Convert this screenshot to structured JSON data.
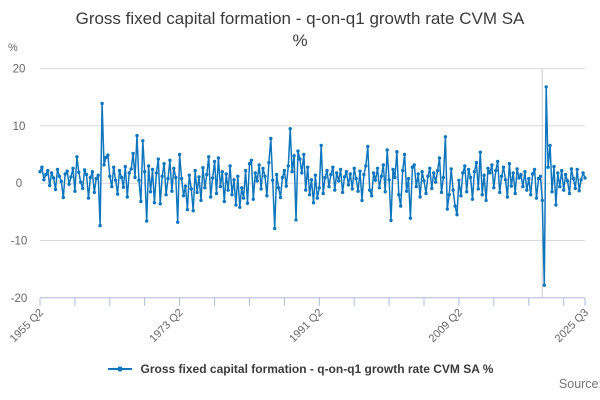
{
  "title": {
    "line1": "Gross fixed capital formation - q-on-q1 growth rate CVM SA",
    "line2": "%"
  },
  "y_axis_unit": "%",
  "legend": {
    "label": "Gross fixed capital formation - q-on-q1 growth rate CVM SA %"
  },
  "source": {
    "label": "Source:"
  },
  "colors": {
    "line": "#0f76bc",
    "grid": "#d9d9d9",
    "axis": "#aebcd4",
    "tick_text": "#666666",
    "title_text": "#3b3b3b",
    "event_line": "#cccccc"
  },
  "chart_data": {
    "type": "line",
    "title": "Gross fixed capital formation - q-on-q1 growth rate CVM SA %",
    "xlabel": "",
    "ylabel": "%",
    "ylim": [
      -20,
      20
    ],
    "grid": "horizontal",
    "legend_position": "bottom",
    "y_axis": {
      "ticks": [
        20,
        10,
        0,
        -10,
        -20
      ]
    },
    "x_axis": {
      "start": "1955 Q2",
      "end": "2025 Q3",
      "frequency": "quarterly",
      "minor_tick_every": 18,
      "labels": [
        {
          "index": 0,
          "label": "1955 Q2"
        },
        {
          "index": 72,
          "label": "1973 Q2"
        },
        {
          "index": 144,
          "label": "1991 Q2"
        },
        {
          "index": 216,
          "label": "2009 Q2"
        },
        {
          "index": 281,
          "label": "2025 Q3"
        }
      ]
    },
    "event_line_index": 259,
    "series": [
      {
        "name": "Gross fixed capital formation - q-on-q1 growth rate CVM SA %",
        "values": [
          2.0,
          2.8,
          0.6,
          1.5,
          2.2,
          -0.4,
          1.8,
          0.9,
          -1.1,
          2.4,
          1.2,
          0.3,
          -2.5,
          1.6,
          2.1,
          -0.2,
          1.1,
          2.6,
          -1.4,
          4.6,
          1.9,
          0.2,
          -0.9,
          2.3,
          1.5,
          -2.6,
          1.0,
          2.0,
          -1.6,
          0.8,
          1.4,
          -7.4,
          13.9,
          3.2,
          4.5,
          4.9,
          1.2,
          -0.6,
          2.8,
          0.5,
          -1.9,
          2.2,
          1.0,
          -0.7,
          2.9,
          -2.4,
          1.8,
          2.5,
          5.2,
          1.0,
          8.3,
          0.5,
          -3.2,
          7.4,
          2.0,
          -6.6,
          3.0,
          -1.5,
          2.4,
          -3.4,
          1.8,
          4.2,
          -3.6,
          1.2,
          3.4,
          -2.0,
          0.8,
          4.0,
          -1.4,
          2.6,
          1.0,
          -6.8,
          5.0,
          0.8,
          -2.2,
          -0.5,
          -4.6,
          1.4,
          -1.0,
          -4.8,
          2.2,
          -1.6,
          1.1,
          -3.0,
          2.7,
          -0.8,
          1.5,
          4.6,
          -2.4,
          0.9,
          3.8,
          -1.8,
          4.4,
          -0.6,
          2.0,
          -3.2,
          1.6,
          -1.2,
          3.0,
          -2.0,
          0.6,
          -3.8,
          1.2,
          -4.2,
          -0.8,
          -2.6,
          2.2,
          -3.5,
          3.4,
          4.0,
          -2.8,
          1.8,
          0.4,
          3.2,
          -1.0,
          2.6,
          1.2,
          -2.2,
          3.6,
          7.8,
          0.5,
          -7.9,
          1.5,
          -0.8,
          -2.5,
          1.0,
          2.2,
          -0.5,
          3.0,
          9.5,
          2.0,
          4.8,
          -6.4,
          5.6,
          4.2,
          1.8,
          5.0,
          -1.2,
          2.8,
          -2.0,
          0.6,
          -3.4,
          1.4,
          -2.6,
          -0.8,
          6.6,
          -1.8,
          1.0,
          2.2,
          -0.6,
          1.5,
          2.8,
          -1.2,
          1.8,
          0.4,
          2.4,
          -1.6,
          1.1,
          2.0,
          -0.3,
          1.6,
          -1.0,
          2.6,
          0.8,
          -1.4,
          2.1,
          -3.0,
          1.5,
          3.0,
          6.4,
          -1.2,
          -2.2,
          1.8,
          0.5,
          2.6,
          -0.8,
          1.2,
          3.2,
          -1.5,
          5.8,
          0.6,
          -6.5,
          2.4,
          1.0,
          5.5,
          -2.0,
          -4.0,
          2.2,
          5.0,
          -1.4,
          0.8,
          -6.1,
          2.8,
          3.2,
          -0.6,
          1.6,
          -2.4,
          2.0,
          0.4,
          -1.8,
          1.2,
          2.6,
          -0.9,
          1.8,
          0.2,
          2.2,
          4.4,
          -1.6,
          1.0,
          8.1,
          -4.5,
          -2.0,
          2.5,
          -1.2,
          -4.0,
          -5.5,
          0.5,
          -2.2,
          1.8,
          3.0,
          -1.5,
          2.4,
          1.0,
          -2.8,
          2.0,
          3.6,
          -1.0,
          5.4,
          -2.0,
          1.4,
          -3.0,
          2.6,
          1.8,
          3.2,
          -0.8,
          2.2,
          3.8,
          -1.6,
          1.2,
          2.8,
          0.6,
          -2.4,
          3.4,
          -0.5,
          1.8,
          -1.8,
          2.5,
          0.9,
          1.5,
          -0.6,
          2.0,
          -1.2,
          0.8,
          -2.0,
          1.6,
          2.4,
          -2.6,
          0.8,
          1.2,
          -3.0,
          -17.8,
          16.8,
          2.8,
          6.6,
          -1.5,
          2.9,
          -3.8,
          1.8,
          -0.6,
          2.2,
          -1.2,
          1.5,
          0.4,
          -1.8,
          2.5,
          0.8,
          -0.9,
          2.4,
          -1.3,
          0.6,
          1.8,
          0.9
        ]
      }
    ]
  }
}
